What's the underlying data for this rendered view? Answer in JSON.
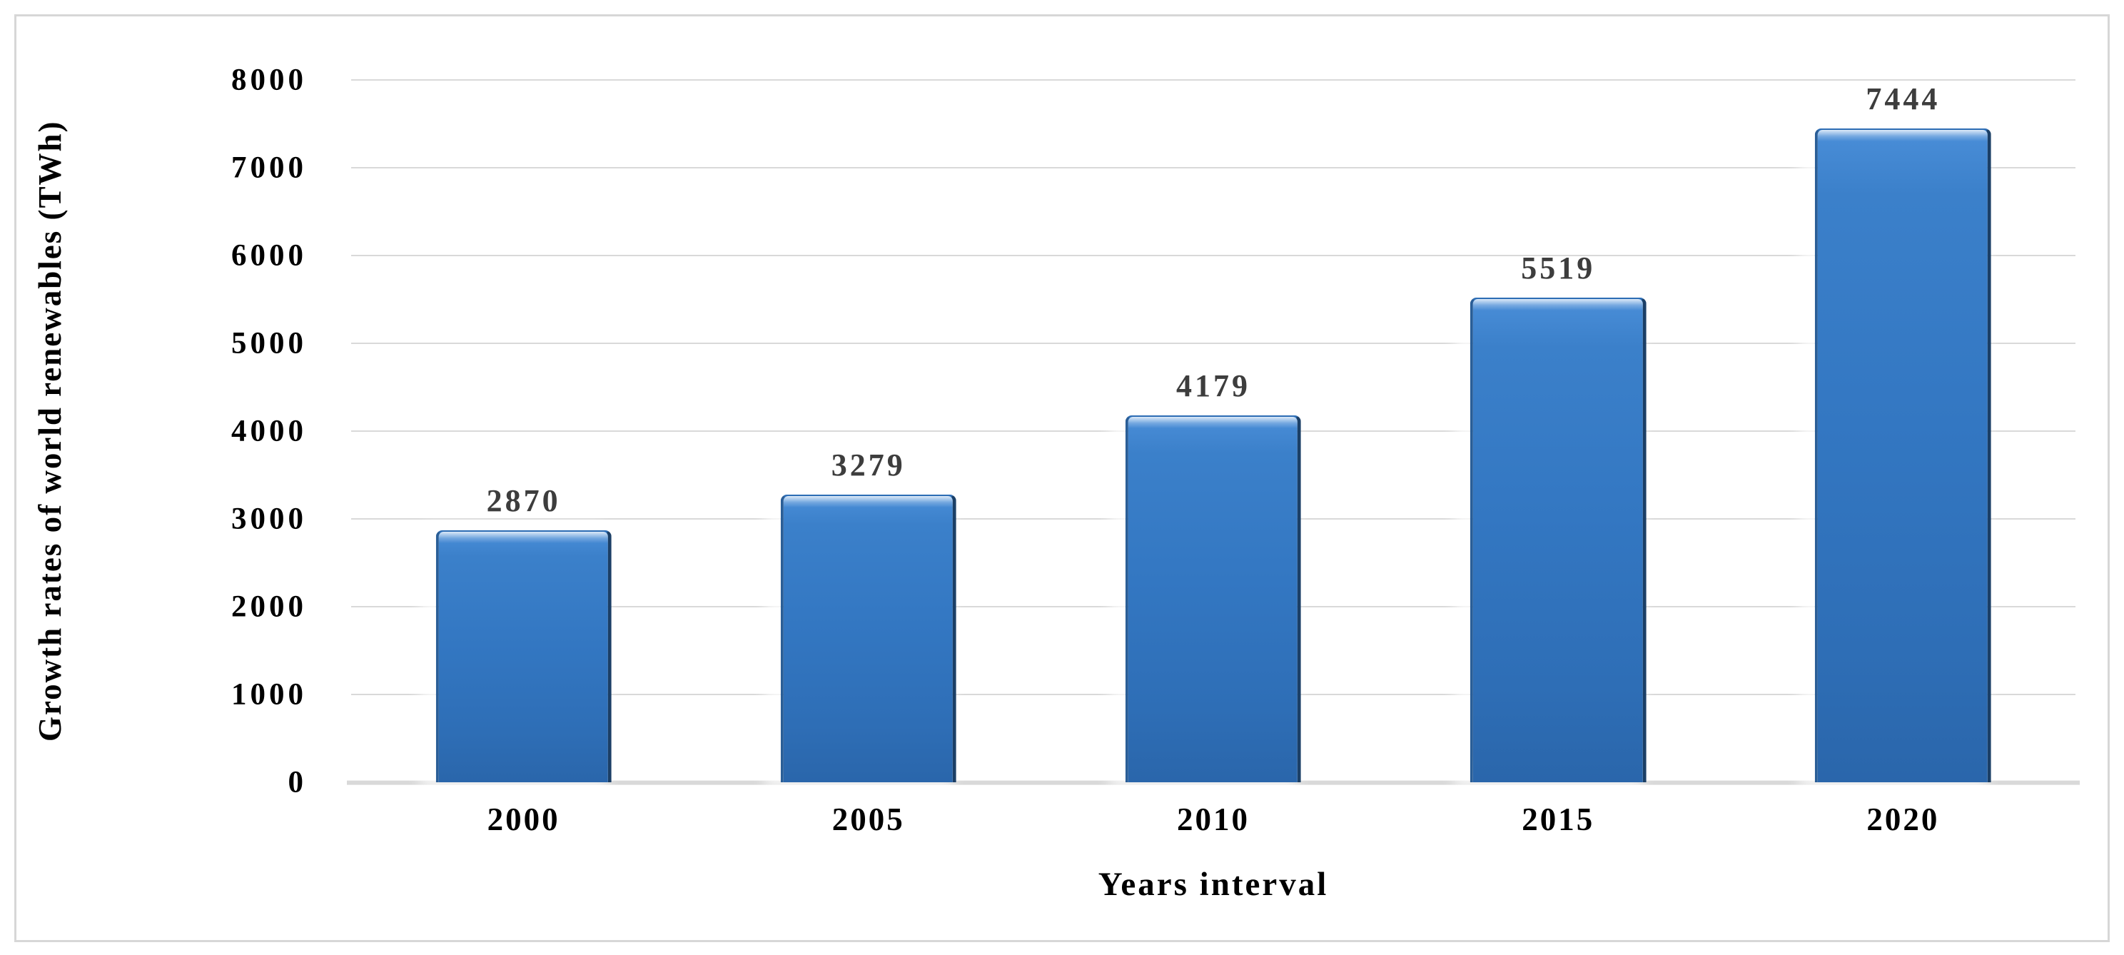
{
  "figure": {
    "background_color": "#ffffff",
    "border_color": "#d7d7d7"
  },
  "chart_data": {
    "type": "bar",
    "title": "",
    "categories": [
      "2000",
      "2005",
      "2010",
      "2015",
      "2020"
    ],
    "values": [
      2870,
      3279,
      4179,
      5519,
      7444
    ],
    "data_labels": [
      "2870",
      "3279",
      "4179",
      "5519",
      "7444"
    ],
    "xlabel": "Years interval",
    "ylabel": "Growth rates of world renewables (TWh)",
    "ylim": [
      0,
      8000
    ],
    "y_ticks": [
      0,
      1000,
      2000,
      3000,
      4000,
      5000,
      6000,
      7000,
      8000
    ],
    "y_tick_labels": [
      "0",
      "1000",
      "2000",
      "3000",
      "4000",
      "5000",
      "6000",
      "7000",
      "8000"
    ],
    "grid": "horizontal",
    "legend": "none",
    "bar_color": "#3377c2",
    "bar_border_color": "#1b3f66",
    "data_label_color": "#3d3d3d",
    "gridline_color": "#d9d9d9",
    "axis_text_color": "#000000"
  }
}
